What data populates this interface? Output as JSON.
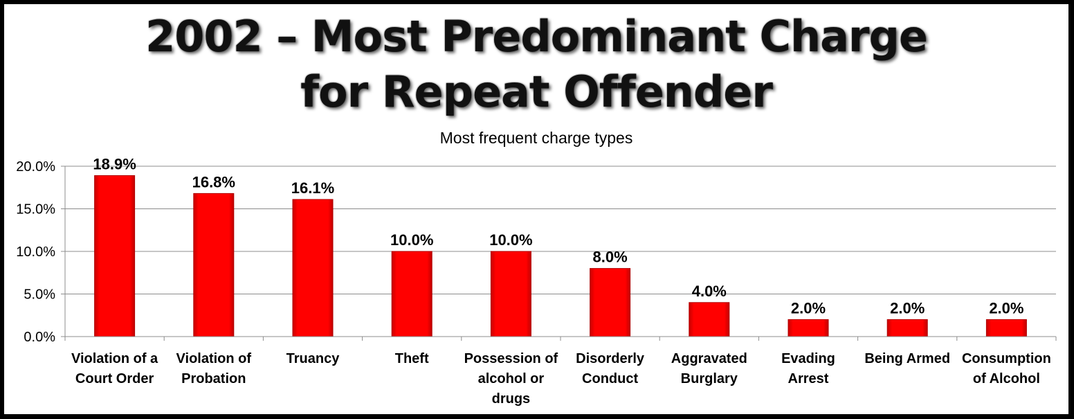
{
  "title": {
    "line1": "2002 – Most Predominant Charge",
    "line2": "for Repeat Offender"
  },
  "chart_data": {
    "type": "bar",
    "title": "Most frequent charge types",
    "categories": [
      [
        "Violation of a",
        "Court Order"
      ],
      [
        "Violation of",
        "Probation"
      ],
      [
        "Truancy"
      ],
      [
        "Theft"
      ],
      [
        "Possession of",
        "alcohol or",
        "drugs"
      ],
      [
        "Disorderly",
        "Conduct"
      ],
      [
        "Aggravated",
        "Burglary"
      ],
      [
        "Evading",
        "Arrest"
      ],
      [
        "Being Armed"
      ],
      [
        "Consumption",
        "of Alcohol"
      ]
    ],
    "values": [
      18.9,
      16.8,
      16.1,
      10.0,
      10.0,
      8.0,
      4.0,
      2.0,
      2.0,
      2.0
    ],
    "data_labels": [
      "18.9%",
      "16.8%",
      "16.1%",
      "10.0%",
      "10.0%",
      "8.0%",
      "4.0%",
      "2.0%",
      "2.0%",
      "2.0%"
    ],
    "y_ticks": [
      0,
      5,
      10,
      15,
      20
    ],
    "y_tick_labels": [
      "0.0%",
      "5.0%",
      "10.0%",
      "15.0%",
      "20.0%"
    ],
    "ylim": [
      0,
      20
    ],
    "grid": true,
    "bar_color": "#ff0000",
    "xlabel": "",
    "ylabel": ""
  }
}
